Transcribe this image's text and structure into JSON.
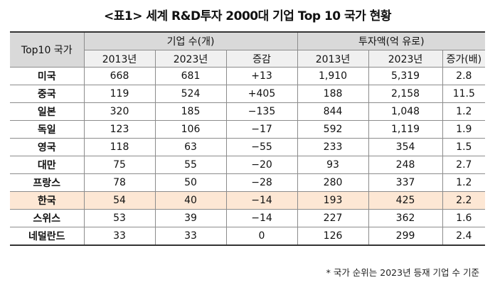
{
  "title": "<표1> 세계 R&D투자 2000대 기업 Top 10 국가 현황",
  "header": {
    "country": "Top10 국가",
    "companies_group": "기업 수(개)",
    "investment_group": "투자액(억 유로)",
    "companies_cols": [
      "2013년",
      "2023년",
      "증감"
    ],
    "investment_cols": [
      "2013년",
      "2023년",
      "증가(배)"
    ]
  },
  "rows": [
    {
      "country": "미국",
      "c2013": "668",
      "c2023": "681",
      "cdiff": "+13",
      "i2013": "1,910",
      "i2023": "5,319",
      "igrowth": "2.8"
    },
    {
      "country": "중국",
      "c2013": "119",
      "c2023": "524",
      "cdiff": "+405",
      "i2013": "188",
      "i2023": "2,158",
      "igrowth": "11.5"
    },
    {
      "country": "일본",
      "c2013": "320",
      "c2023": "185",
      "cdiff": "−135",
      "i2013": "844",
      "i2023": "1,048",
      "igrowth": "1.2"
    },
    {
      "country": "독일",
      "c2013": "123",
      "c2023": "106",
      "cdiff": "−17",
      "i2013": "592",
      "i2023": "1,119",
      "igrowth": "1.9"
    },
    {
      "country": "영국",
      "c2013": "118",
      "c2023": "63",
      "cdiff": "−55",
      "i2013": "233",
      "i2023": "354",
      "igrowth": "1.5"
    },
    {
      "country": "대만",
      "c2013": "75",
      "c2023": "55",
      "cdiff": "−20",
      "i2013": "93",
      "i2023": "248",
      "igrowth": "2.7"
    },
    {
      "country": "프랑스",
      "c2013": "78",
      "c2023": "50",
      "cdiff": "−28",
      "i2013": "280",
      "i2023": "337",
      "igrowth": "1.2"
    },
    {
      "country": "한국",
      "c2013": "54",
      "c2023": "40",
      "cdiff": "−14",
      "i2013": "193",
      "i2023": "425",
      "igrowth": "2.2",
      "highlight": true
    },
    {
      "country": "스위스",
      "c2013": "53",
      "c2023": "39",
      "cdiff": "−14",
      "i2013": "227",
      "i2023": "362",
      "igrowth": "1.6"
    },
    {
      "country": "네덜란드",
      "c2013": "33",
      "c2023": "33",
      "cdiff": "0",
      "i2013": "126",
      "i2023": "299",
      "igrowth": "2.4"
    }
  ],
  "note": "* 국가 순위는 2023년 등재 기업 수 기준",
  "colors": {
    "highlight_row": "#fde7d4",
    "header_bg": "#d9d9d9",
    "subheader_bg": "#f0f0f0"
  }
}
